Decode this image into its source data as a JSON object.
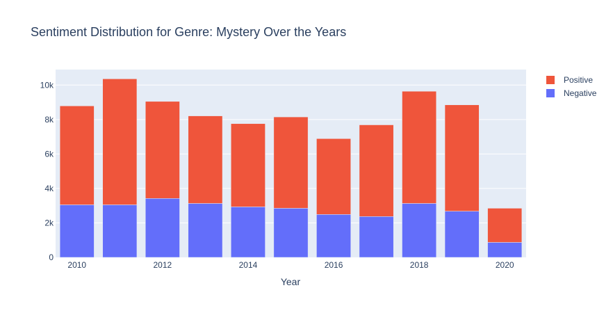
{
  "chart_data": {
    "type": "bar",
    "barmode": "stack",
    "title": "Sentiment Distribution for Genre: Mystery Over the Years",
    "xlabel": "Year",
    "ylabel": "",
    "categories": [
      2010,
      2011,
      2012,
      2013,
      2014,
      2015,
      2016,
      2017,
      2018,
      2019,
      2020
    ],
    "x_tick_labels": [
      "2010",
      "2012",
      "2014",
      "2016",
      "2018",
      "2020"
    ],
    "x_tick_values": [
      2010,
      2012,
      2014,
      2016,
      2018,
      2020
    ],
    "y_tick_labels": [
      "0",
      "2k",
      "4k",
      "6k",
      "8k",
      "10k"
    ],
    "y_tick_values": [
      0,
      2000,
      4000,
      6000,
      8000,
      10000
    ],
    "ylim": [
      0,
      10900
    ],
    "grid": true,
    "legend_position": "top-right",
    "series": [
      {
        "name": "Negative",
        "color": "#636efa",
        "values": [
          3050,
          3050,
          3420,
          3130,
          2930,
          2850,
          2490,
          2370,
          3130,
          2680,
          870
        ]
      },
      {
        "name": "Positive",
        "color": "#ef553b",
        "values": [
          5740,
          7310,
          5630,
          5080,
          4830,
          5300,
          4400,
          5320,
          6510,
          6170,
          1980
        ]
      }
    ],
    "legend_order": [
      "Positive",
      "Negative"
    ]
  }
}
